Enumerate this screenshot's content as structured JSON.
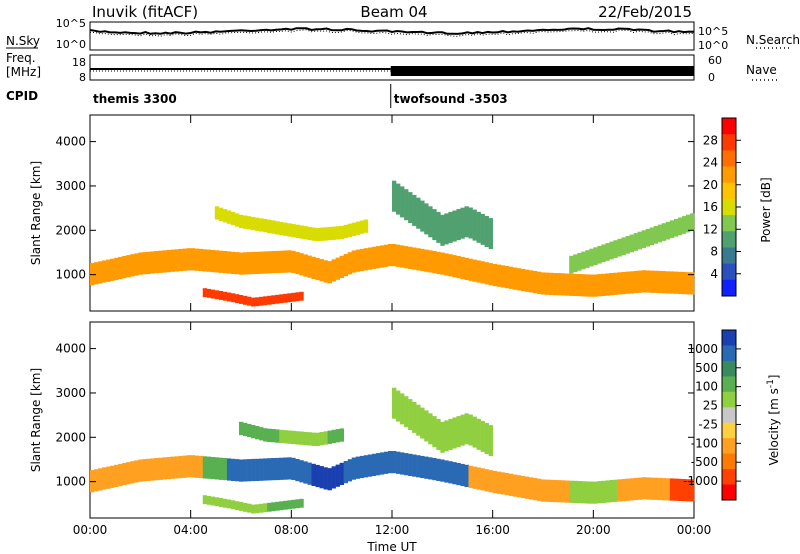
{
  "header": {
    "station": "Inuvik (fitACF)",
    "beam": "Beam 04",
    "date": "22/Feb/2015"
  },
  "side_labels": {
    "nsky": "N.Sky",
    "nsearch": "N.Search",
    "freq_line1": "Freq.",
    "freq_line2": "[MHz]",
    "nave": "Nave",
    "cpid": "CPID"
  },
  "noise_panel": {
    "left_ticks": [
      "10^5",
      "10^0"
    ],
    "right_ticks": [
      "10^5",
      "10^0"
    ]
  },
  "freq_panel": {
    "left_ticks": [
      "18",
      "8"
    ],
    "right_ticks": [
      "60",
      "0"
    ]
  },
  "cpid_panel": {
    "segments": [
      {
        "label": "themis 3300",
        "start_hour": 0,
        "end_hour": 11.95
      },
      {
        "label": "twofsound -3503",
        "start_hour": 11.95,
        "end_hour": 24
      }
    ]
  },
  "chart_data": [
    {
      "type": "heatmap",
      "name": "power",
      "xlabel": "",
      "ylabel": "Slant Range [km]",
      "xlim": [
        0,
        24
      ],
      "ylim": [
        180,
        4600
      ],
      "y_ticks": [
        1000,
        2000,
        3000,
        4000
      ],
      "colorbar": {
        "label": "Power [dB]",
        "ticks": [
          "28",
          "24",
          "20",
          "16",
          "12",
          "8",
          "4"
        ],
        "colors": [
          "#ff0000",
          "#ff3a00",
          "#ff6e00",
          "#ff9a00",
          "#ffc400",
          "#d8dc00",
          "#80c850",
          "#50a070",
          "#3a7a90",
          "#2a50c0",
          "#1020ff"
        ]
      },
      "bands": [
        {
          "t": [
            0,
            2,
            4,
            6,
            8,
            9.5,
            10.5,
            12,
            14,
            16,
            18,
            20,
            22,
            24
          ],
          "center_km": [
            1000,
            1250,
            1350,
            1250,
            1300,
            1050,
            1300,
            1450,
            1250,
            1000,
            800,
            750,
            850,
            800
          ],
          "width_km": 500,
          "value_db": 22
        },
        {
          "t": [
            4.5,
            5.5,
            6.5,
            7.5,
            8.5
          ],
          "center_km": [
            600,
            500,
            380,
            450,
            520
          ],
          "width_km": 200,
          "value_db": 26
        },
        {
          "t": [
            12,
            13,
            14,
            15,
            16
          ],
          "center_km": [
            2800,
            2400,
            2000,
            2200,
            1900
          ],
          "width_km": 700,
          "value_db": 9
        },
        {
          "t": [
            5,
            6,
            7,
            8,
            9,
            10,
            11
          ],
          "center_km": [
            2400,
            2200,
            2100,
            2000,
            1900,
            1950,
            2100
          ],
          "width_km": 300,
          "value_db": 14
        },
        {
          "t": [
            19,
            20,
            21,
            22,
            23,
            24
          ],
          "center_km": [
            1200,
            1400,
            1600,
            1800,
            2000,
            2200
          ],
          "width_km": 400,
          "value_db": 12
        }
      ]
    },
    {
      "type": "heatmap",
      "name": "velocity",
      "xlabel": "Time UT",
      "ylabel": "Slant Range [km]",
      "xlim": [
        0,
        24
      ],
      "ylim": [
        180,
        4600
      ],
      "x_ticks": [
        "00:00",
        "04:00",
        "08:00",
        "12:00",
        "16:00",
        "20:00",
        "00:00"
      ],
      "y_ticks": [
        1000,
        2000,
        3000,
        4000
      ],
      "colorbar": {
        "label": "Velocity [m s^-1]",
        "ticks": [
          "1000",
          "500",
          "100",
          "25",
          "-25",
          "-100",
          "-500",
          "-1000"
        ],
        "colors": [
          "#1a3fb0",
          "#2a6ab4",
          "#3a8a60",
          "#58b050",
          "#90d040",
          "#c8c8c8",
          "#ffd040",
          "#ffa020",
          "#ff7a00",
          "#ff4000",
          "#ff0000"
        ]
      },
      "bands": [
        {
          "t": [
            0,
            2,
            4,
            5,
            6,
            8,
            9.5,
            10.5,
            12,
            14,
            16,
            18,
            20,
            22,
            24
          ],
          "center_km": [
            1000,
            1250,
            1350,
            1300,
            1250,
            1300,
            1050,
            1300,
            1450,
            1250,
            1000,
            800,
            750,
            850,
            800
          ],
          "width_km": 500,
          "category": [
            "-100",
            "-100",
            "-100",
            "100",
            "500",
            "500",
            "1000",
            "500",
            "500",
            "500",
            "-100",
            "-100",
            "25",
            "-100",
            "-500"
          ]
        },
        {
          "t": [
            4.5,
            5.5,
            6.5,
            7.5,
            8.5
          ],
          "center_km": [
            600,
            500,
            380,
            450,
            520
          ],
          "width_km": 200,
          "category": [
            "25",
            "25",
            "25",
            "100",
            "100"
          ]
        },
        {
          "t": [
            12,
            13,
            14,
            15,
            16
          ],
          "center_km": [
            2800,
            2400,
            2000,
            2200,
            1900
          ],
          "width_km": 700,
          "category": [
            "25",
            "25",
            "25",
            "25",
            "25"
          ]
        },
        {
          "t": [
            6,
            7,
            8,
            9,
            10
          ],
          "center_km": [
            2200,
            2050,
            2000,
            1950,
            2050
          ],
          "width_km": 300,
          "category": [
            "100",
            "100",
            "25",
            "25",
            "100"
          ]
        }
      ]
    }
  ]
}
